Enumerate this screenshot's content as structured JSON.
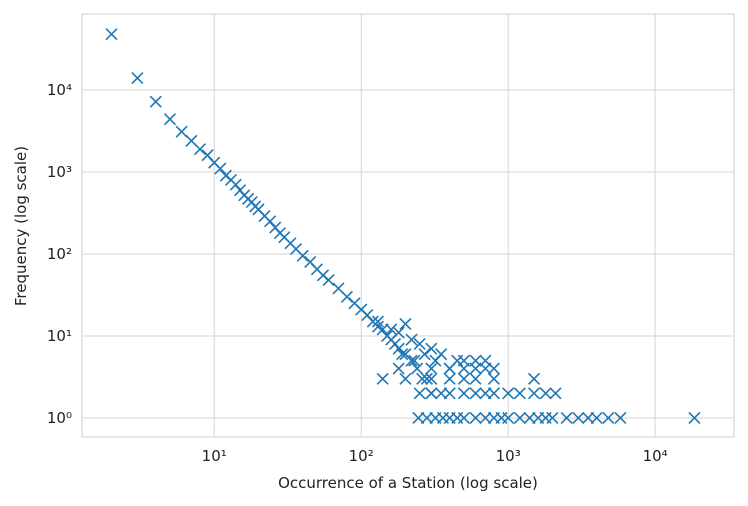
{
  "chart_data": {
    "type": "scatter",
    "xlabel": "Occurrence of a Station (log scale)",
    "ylabel": "Frequency (log scale)",
    "xlog": true,
    "ylog": true,
    "grid": true,
    "color": "#1f77b4",
    "marker": "x",
    "xlim": [
      1.26,
      34400
    ],
    "ylim": [
      0.586,
      84500
    ],
    "xticks": [
      {
        "value": 10,
        "label": "10¹"
      },
      {
        "value": 100,
        "label": "10²"
      },
      {
        "value": 1000,
        "label": "10³"
      },
      {
        "value": 10000,
        "label": "10⁴"
      }
    ],
    "yticks": [
      {
        "value": 1,
        "label": "10⁰"
      },
      {
        "value": 10,
        "label": "10¹"
      },
      {
        "value": 100,
        "label": "10²"
      },
      {
        "value": 1000,
        "label": "10³"
      },
      {
        "value": 10000,
        "label": "10⁴"
      }
    ],
    "x": [
      2,
      3,
      4,
      5,
      6,
      7,
      8,
      9,
      10,
      11,
      12,
      13,
      14,
      15,
      16,
      17,
      18,
      19,
      20,
      22,
      24,
      26,
      28,
      30,
      33,
      36,
      40,
      45,
      50,
      55,
      60,
      70,
      80,
      90,
      100,
      110,
      120,
      130,
      140,
      150,
      160,
      170,
      180,
      190,
      200,
      220,
      240,
      260,
      280,
      300,
      130,
      160,
      180,
      200,
      220,
      250,
      300,
      350,
      180,
      200,
      230,
      270,
      320,
      400,
      450,
      500,
      600,
      700,
      800,
      140,
      300,
      400,
      500,
      600,
      700,
      300,
      400,
      500,
      600,
      800,
      1500,
      250,
      300,
      350,
      400,
      500,
      600,
      700,
      800,
      1000,
      1200,
      1500,
      1800,
      2100,
      245,
      280,
      320,
      360,
      400,
      450,
      500,
      600,
      700,
      800,
      900,
      1000,
      1200,
      1400,
      1600,
      1800,
      2000,
      2500,
      3000,
      3500,
      4000,
      4800,
      5800,
      18500
    ],
    "y": [
      48000,
      14000,
      7200,
      4400,
      3100,
      2400,
      1900,
      1600,
      1300,
      1100,
      900,
      800,
      700,
      600,
      520,
      470,
      430,
      380,
      350,
      290,
      250,
      210,
      180,
      160,
      135,
      115,
      95,
      80,
      65,
      55,
      48,
      38,
      30,
      25,
      21,
      18,
      15,
      13,
      12,
      10,
      9,
      8,
      7,
      6,
      6,
      5,
      4,
      3,
      3,
      2,
      15,
      12,
      11,
      14,
      9,
      8,
      7,
      6,
      4,
      3,
      5,
      6,
      5,
      4,
      5,
      5,
      5,
      5,
      4,
      3,
      4,
      4,
      4,
      4,
      4,
      3,
      3,
      3,
      3,
      3,
      3,
      2,
      2,
      2,
      2,
      2,
      2,
      2,
      2,
      2,
      2,
      2,
      2,
      2,
      1,
      1,
      1,
      1,
      1,
      1,
      1,
      1,
      1,
      1,
      1,
      1,
      1,
      1,
      1,
      1,
      1,
      1,
      1,
      1,
      1,
      1,
      1,
      1
    ]
  }
}
